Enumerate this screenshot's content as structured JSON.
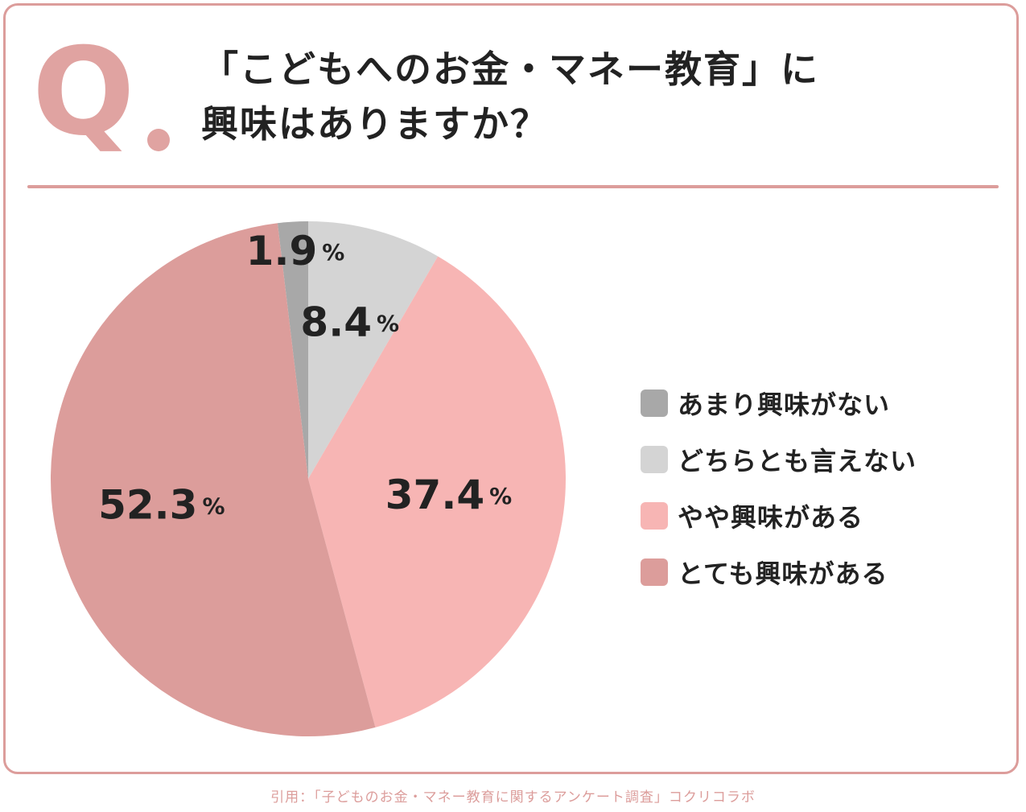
{
  "question": {
    "mark": "Q",
    "title_line1": "「こどもへのお金・マネー教育」に",
    "title_line2": "興味はありますか？"
  },
  "chart_data": {
    "type": "pie",
    "categories": [
      "あまり興味がない",
      "どちらとも言えない",
      "やや興味がある",
      "とても興味がある"
    ],
    "values": [
      1.9,
      8.4,
      37.4,
      52.3
    ],
    "value_labels": [
      "1.9",
      "8.4",
      "37.4",
      "52.3"
    ],
    "unit": "%",
    "colors": [
      "#a8a8a8",
      "#d4d4d4",
      "#f7b5b4",
      "#dc9d9b"
    ],
    "legend_position": "right"
  },
  "source": "引用：「子どものお金・マネー教育に関するアンケート調査」コクリコラボ"
}
